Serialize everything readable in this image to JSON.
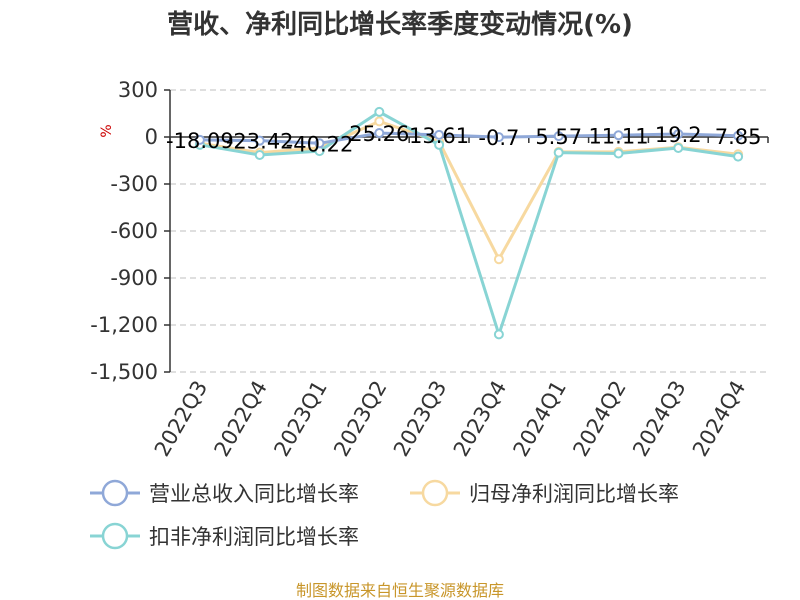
{
  "chart_data": {
    "type": "line",
    "title": "营收、净利同比增长率季度变动情况(%)",
    "ylabel": "%",
    "categories": [
      "2022Q3",
      "2022Q4",
      "2023Q1",
      "2023Q2",
      "2023Q3",
      "2023Q4",
      "2024Q1",
      "2024Q2",
      "2024Q3",
      "2024Q4"
    ],
    "ylim": [
      -1500,
      300
    ],
    "yticks": [
      300,
      0,
      -300,
      -600,
      -900,
      -1200,
      -1500
    ],
    "ytick_labels": [
      "300",
      "0",
      "-300",
      "-600",
      "-900",
      "-1,200",
      "-1,500"
    ],
    "grid": true,
    "legend_position": "bottom",
    "series": [
      {
        "name": "营业总收入同比增长率",
        "color": "#8fa8d8",
        "values": [
          -18.09,
          -23.42,
          -40.22,
          25.26,
          13.61,
          -0.7,
          5.57,
          11.11,
          19.2,
          7.85
        ],
        "labels": [
          "-18.09",
          "-23.42",
          "-40.22",
          "25.26",
          "13.61",
          "-0.7",
          "5.57",
          "11.11",
          "19.2",
          "7.85"
        ]
      },
      {
        "name": "归母净利润同比增长率",
        "color": "#f7d9a0",
        "values": [
          -40,
          -100,
          -70,
          100,
          -30,
          -780,
          -95,
          -95,
          -65,
          -110
        ]
      },
      {
        "name": "扣非净利润同比增长率",
        "color": "#88d4d4",
        "values": [
          -50,
          -115,
          -90,
          160,
          -50,
          -1260,
          -100,
          -105,
          -70,
          -125
        ]
      }
    ]
  },
  "source": "制图数据来自恒生聚源数据库"
}
